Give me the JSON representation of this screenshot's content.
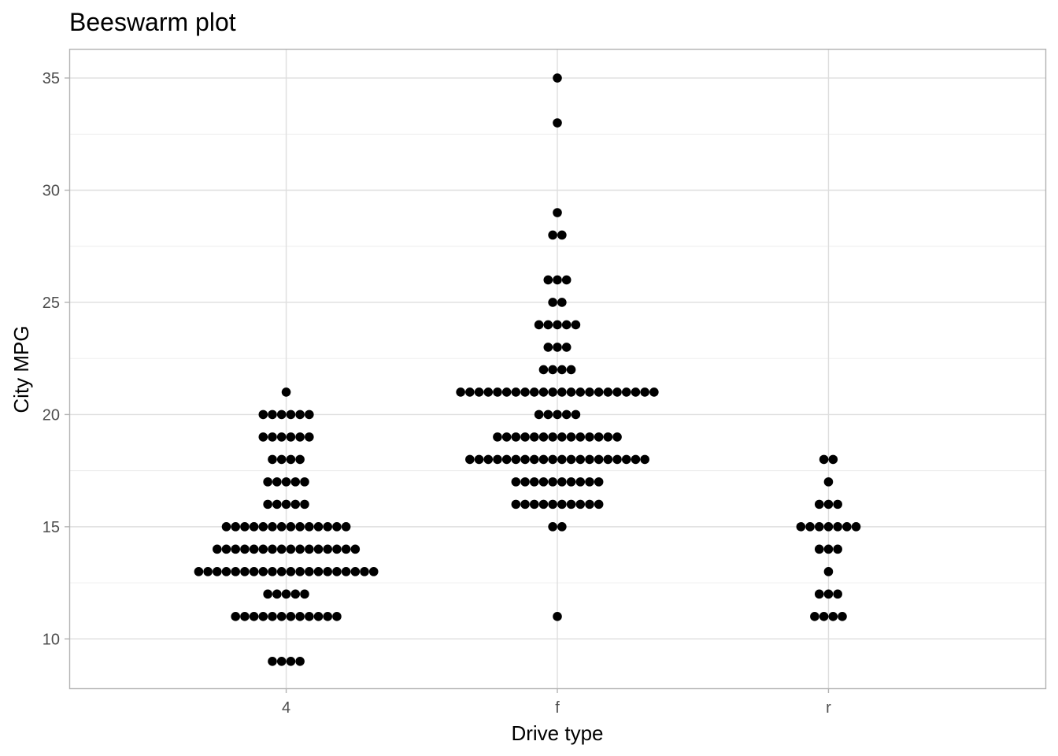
{
  "chart_data": {
    "type": "scatter",
    "subtype": "beeswarm",
    "title": "Beeswarm plot",
    "xlabel": "Drive type",
    "ylabel": "City MPG",
    "categories": [
      "4",
      "f",
      "r"
    ],
    "ylim": [
      7.8,
      36.3
    ],
    "yticks": [
      10,
      15,
      20,
      25,
      30,
      35
    ],
    "grid": true,
    "point_color": "#000000",
    "series": [
      {
        "category": "4",
        "values": [
          {
            "y": 9,
            "count": 4
          },
          {
            "y": 11,
            "count": 12
          },
          {
            "y": 12,
            "count": 5
          },
          {
            "y": 13,
            "count": 20
          },
          {
            "y": 14,
            "count": 16
          },
          {
            "y": 15,
            "count": 14
          },
          {
            "y": 16,
            "count": 5
          },
          {
            "y": 17,
            "count": 5
          },
          {
            "y": 18,
            "count": 4
          },
          {
            "y": 19,
            "count": 6
          },
          {
            "y": 20,
            "count": 6
          },
          {
            "y": 21,
            "count": 1
          }
        ]
      },
      {
        "category": "f",
        "values": [
          {
            "y": 11,
            "count": 1
          },
          {
            "y": 15,
            "count": 2
          },
          {
            "y": 16,
            "count": 10
          },
          {
            "y": 17,
            "count": 10
          },
          {
            "y": 18,
            "count": 20
          },
          {
            "y": 19,
            "count": 14
          },
          {
            "y": 20,
            "count": 5
          },
          {
            "y": 21,
            "count": 22
          },
          {
            "y": 22,
            "count": 4
          },
          {
            "y": 23,
            "count": 3
          },
          {
            "y": 24,
            "count": 5
          },
          {
            "y": 25,
            "count": 2
          },
          {
            "y": 26,
            "count": 3
          },
          {
            "y": 28,
            "count": 2
          },
          {
            "y": 29,
            "count": 1
          },
          {
            "y": 33,
            "count": 1
          },
          {
            "y": 35,
            "count": 1
          }
        ]
      },
      {
        "category": "r",
        "values": [
          {
            "y": 11,
            "count": 4
          },
          {
            "y": 12,
            "count": 3
          },
          {
            "y": 13,
            "count": 1
          },
          {
            "y": 14,
            "count": 3
          },
          {
            "y": 15,
            "count": 7
          },
          {
            "y": 16,
            "count": 3
          },
          {
            "y": 17,
            "count": 1
          },
          {
            "y": 18,
            "count": 2
          }
        ]
      }
    ]
  }
}
